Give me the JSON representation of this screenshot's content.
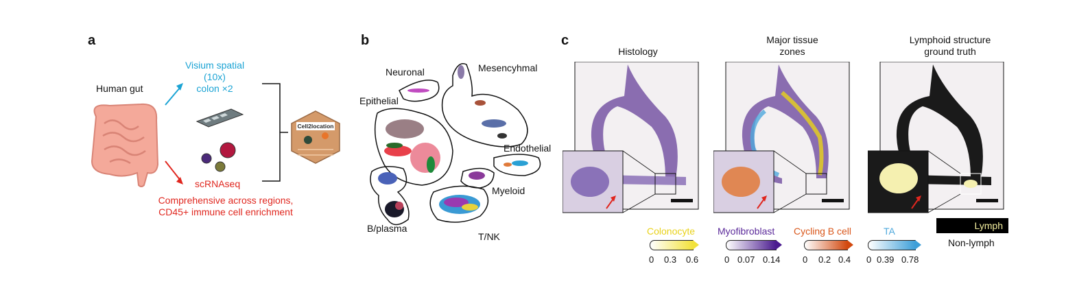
{
  "panel_a": {
    "letter": "a",
    "human_gut": "Human gut",
    "visium_line1": "Visium spatial",
    "visium_line2": "(10x)",
    "visium_line3": "colon ×2",
    "scrnaseq": "scRNAseq",
    "note_line1": "Comprehensive across regions,",
    "note_line2": "CD45+ immune cell enrichment",
    "logo_text": "Cell2location"
  },
  "panel_b": {
    "letter": "b",
    "clusters": {
      "neuronal": "Neuronal",
      "mesenchymal": "Mesencyhmal",
      "epithelial": "Epithelial",
      "endothelial": "Endothelial",
      "myeloid": "Myeloid",
      "bplasma": "B/plasma",
      "tnk": "T/NK"
    }
  },
  "panel_c": {
    "letter": "c",
    "col1_title": "Histology",
    "col2_title_line1": "Major tissue",
    "col2_title_line2": "zones",
    "col3_title_line1": "Lymphoid structure",
    "col3_title_line2": "ground truth",
    "legends": [
      {
        "name": "Colonocyte",
        "color": "#e9d21a",
        "grad_end": "#f2e23a",
        "ticks": [
          "0",
          "0.3",
          "0.6"
        ]
      },
      {
        "name": "Myofibroblast",
        "color": "#5b2a9a",
        "grad_end": "#4b1c8f",
        "ticks": [
          "0",
          "0.07",
          "0.14"
        ]
      },
      {
        "name": "Cycling B cell",
        "color": "#d9571b",
        "grad_end": "#d2490f",
        "ticks": [
          "0",
          "0.2",
          "0.4"
        ]
      },
      {
        "name": "TA",
        "color": "#4ea8dc",
        "grad_end": "#3e9fd8",
        "ticks": [
          "0",
          "0.39",
          "0.78"
        ]
      }
    ],
    "lymph_label": "Lymph",
    "nonlymph_label": "Non-lymph"
  }
}
